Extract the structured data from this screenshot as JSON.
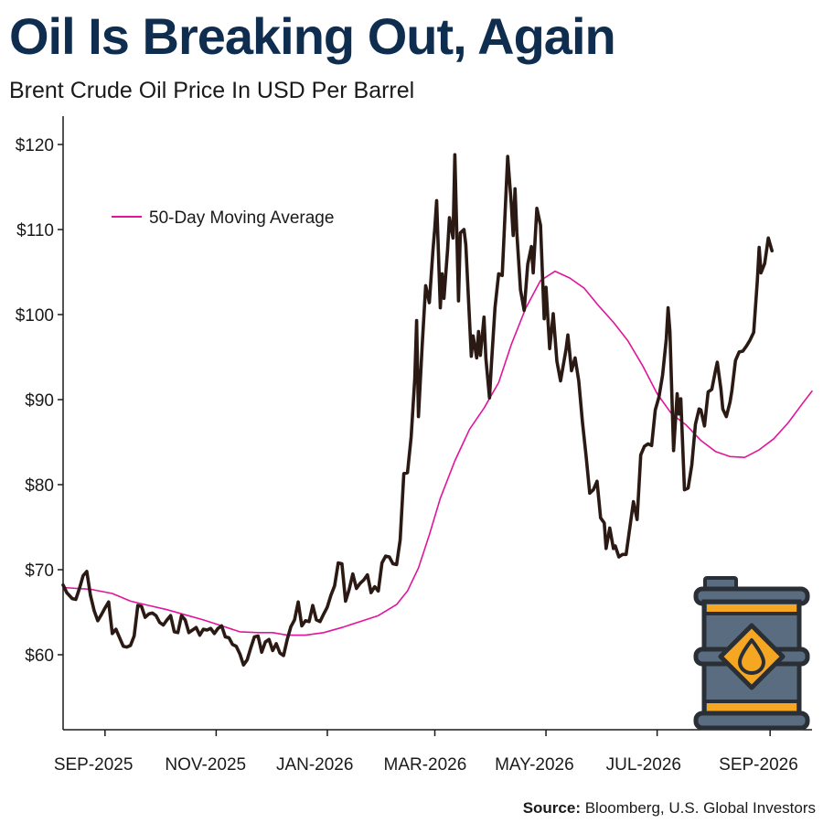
{
  "header": {
    "title": "Oil Is Breaking Out, Again",
    "subtitle": "Brent Crude Oil Price In USD Per Barrel"
  },
  "footer": {
    "source_label": "Source:",
    "source_text": " Bloomberg, U.S. Global Investors"
  },
  "icon": {
    "name": "oil-barrel-icon",
    "colors": {
      "body": "#5a6d80",
      "outline": "#2a2f36",
      "band": "#f5a623",
      "drop": "#f5a623"
    }
  },
  "chart_data": {
    "type": "line",
    "title": "Oil Is Breaking Out, Again",
    "subtitle": "Brent Crude Oil Price In USD Per Barrel",
    "ylim": [
      50,
      123
    ],
    "xlim": [
      "2025-08-09",
      "2026-09-24"
    ],
    "y_ticks": [
      60,
      70,
      80,
      90,
      100,
      110,
      120
    ],
    "y_tick_labels": [
      "$60",
      "$70",
      "$80",
      "$90",
      "$100",
      "$110",
      "$120"
    ],
    "x_ticks": [
      "2025-09-01",
      "2025-11-01",
      "2026-01-01",
      "2026-03-01",
      "2026-05-01",
      "2026-07-01",
      "2026-09-01"
    ],
    "x_tick_labels": [
      "SEP-2025",
      "NOV-2025",
      "JAN-2026",
      "MAR-2026",
      "MAY-2026",
      "JUL-2026",
      "SEP-2026"
    ],
    "legend": {
      "position": "top-left",
      "entries": [
        "50-Day Moving Average"
      ]
    },
    "colors": {
      "price": "#2b1a14",
      "ma": "#e0159a",
      "axis": "#1a1a1a"
    },
    "series": [
      {
        "key": "price",
        "values": [
          [
            "2025-08-09",
            68.2
          ],
          [
            "2025-08-11",
            67.3
          ],
          [
            "2025-08-14",
            66.6
          ],
          [
            "2025-08-16",
            66.5
          ],
          [
            "2025-08-18",
            67.8
          ],
          [
            "2025-08-20",
            69.3
          ],
          [
            "2025-08-22",
            69.8
          ],
          [
            "2025-08-24",
            67.0
          ],
          [
            "2025-08-26",
            65.2
          ],
          [
            "2025-08-28",
            64.0
          ],
          [
            "2025-08-30",
            64.7
          ],
          [
            "2025-09-01",
            65.5
          ],
          [
            "2025-09-03",
            66.2
          ],
          [
            "2025-09-05",
            62.5
          ],
          [
            "2025-09-07",
            63.0
          ],
          [
            "2025-09-09",
            62.0
          ],
          [
            "2025-09-11",
            61.0
          ],
          [
            "2025-09-13",
            60.9
          ],
          [
            "2025-09-15",
            61.1
          ],
          [
            "2025-09-17",
            62.2
          ],
          [
            "2025-09-19",
            65.8
          ],
          [
            "2025-09-21",
            65.7
          ],
          [
            "2025-09-23",
            64.4
          ],
          [
            "2025-09-25",
            64.8
          ],
          [
            "2025-09-27",
            64.9
          ],
          [
            "2025-09-29",
            64.6
          ],
          [
            "2025-10-01",
            63.8
          ],
          [
            "2025-10-03",
            63.5
          ],
          [
            "2025-10-05",
            64.1
          ],
          [
            "2025-10-07",
            64.6
          ],
          [
            "2025-10-09",
            62.7
          ],
          [
            "2025-10-11",
            62.6
          ],
          [
            "2025-10-13",
            64.6
          ],
          [
            "2025-10-15",
            64.1
          ],
          [
            "2025-10-17",
            62.6
          ],
          [
            "2025-10-19",
            62.9
          ],
          [
            "2025-10-21",
            63.2
          ],
          [
            "2025-10-23",
            62.3
          ],
          [
            "2025-10-25",
            63.0
          ],
          [
            "2025-10-27",
            62.9
          ],
          [
            "2025-10-29",
            63.1
          ],
          [
            "2025-10-31",
            62.5
          ],
          [
            "2025-11-02",
            63.1
          ],
          [
            "2025-11-04",
            63.4
          ],
          [
            "2025-11-06",
            62.1
          ],
          [
            "2025-11-08",
            62.0
          ],
          [
            "2025-11-10",
            61.2
          ],
          [
            "2025-11-12",
            61.0
          ],
          [
            "2025-11-14",
            60.1
          ],
          [
            "2025-11-16",
            58.8
          ],
          [
            "2025-11-18",
            59.4
          ],
          [
            "2025-11-20",
            60.8
          ],
          [
            "2025-11-22",
            62.1
          ],
          [
            "2025-11-24",
            62.2
          ],
          [
            "2025-11-26",
            60.3
          ],
          [
            "2025-11-28",
            61.5
          ],
          [
            "2025-11-30",
            61.8
          ],
          [
            "2025-12-02",
            60.5
          ],
          [
            "2025-12-04",
            61.3
          ],
          [
            "2025-12-06",
            60.2
          ],
          [
            "2025-12-08",
            59.9
          ],
          [
            "2025-12-10",
            61.8
          ],
          [
            "2025-12-12",
            63.3
          ],
          [
            "2025-12-14",
            64.1
          ],
          [
            "2025-12-16",
            66.2
          ],
          [
            "2025-12-18",
            63.4
          ],
          [
            "2025-12-20",
            64.0
          ],
          [
            "2025-12-22",
            63.9
          ],
          [
            "2025-12-24",
            65.8
          ],
          [
            "2025-12-26",
            64.1
          ],
          [
            "2025-12-28",
            63.9
          ],
          [
            "2025-12-30",
            64.8
          ],
          [
            "2026-01-01",
            65.6
          ],
          [
            "2026-01-03",
            67.0
          ],
          [
            "2026-01-05",
            68.1
          ],
          [
            "2026-01-07",
            70.8
          ],
          [
            "2026-01-09",
            70.7
          ],
          [
            "2026-01-11",
            66.3
          ],
          [
            "2026-01-13",
            67.7
          ],
          [
            "2026-01-15",
            69.5
          ],
          [
            "2026-01-17",
            67.8
          ],
          [
            "2026-01-19",
            68.4
          ],
          [
            "2026-01-21",
            68.8
          ],
          [
            "2026-01-23",
            69.4
          ],
          [
            "2026-01-25",
            67.3
          ],
          [
            "2026-01-27",
            68.0
          ],
          [
            "2026-01-29",
            67.5
          ],
          [
            "2026-01-31",
            70.8
          ],
          [
            "2026-02-02",
            71.6
          ],
          [
            "2026-02-04",
            71.5
          ],
          [
            "2026-02-06",
            70.7
          ],
          [
            "2026-02-08",
            70.6
          ],
          [
            "2026-02-10",
            73.5
          ],
          [
            "2026-02-12",
            81.3
          ],
          [
            "2026-02-14",
            81.4
          ],
          [
            "2026-02-16",
            85.6
          ],
          [
            "2026-02-18",
            92.5
          ],
          [
            "2026-02-19",
            99.3
          ],
          [
            "2026-02-20",
            88.0
          ],
          [
            "2026-02-22",
            96.2
          ],
          [
            "2026-02-24",
            103.4
          ],
          [
            "2026-02-26",
            101.4
          ],
          [
            "2026-02-28",
            107.6
          ],
          [
            "2026-03-01",
            110.2
          ],
          [
            "2026-03-02",
            113.4
          ],
          [
            "2026-03-04",
            100.8
          ],
          [
            "2026-03-05",
            104.8
          ],
          [
            "2026-03-06",
            101.9
          ],
          [
            "2026-03-08",
            107.7
          ],
          [
            "2026-03-09",
            111.4
          ],
          [
            "2026-03-11",
            109.0
          ],
          [
            "2026-03-12",
            118.8
          ],
          [
            "2026-03-14",
            101.6
          ],
          [
            "2026-03-15",
            109.6
          ],
          [
            "2026-03-17",
            110.0
          ],
          [
            "2026-03-18",
            108.2
          ],
          [
            "2026-03-21",
            95.1
          ],
          [
            "2026-03-22",
            97.5
          ],
          [
            "2026-03-24",
            94.9
          ],
          [
            "2026-03-25",
            98.0
          ],
          [
            "2026-03-26",
            95.2
          ],
          [
            "2026-03-28",
            99.7
          ],
          [
            "2026-03-29",
            94.9
          ],
          [
            "2026-03-31",
            90.2
          ],
          [
            "2026-04-01",
            94.0
          ],
          [
            "2026-04-03",
            100.8
          ],
          [
            "2026-04-05",
            104.8
          ],
          [
            "2026-04-07",
            104.6
          ],
          [
            "2026-04-10",
            118.6
          ],
          [
            "2026-04-12",
            112.9
          ],
          [
            "2026-04-13",
            109.3
          ],
          [
            "2026-04-14",
            114.8
          ],
          [
            "2026-04-15",
            109.6
          ],
          [
            "2026-04-17",
            102.9
          ],
          [
            "2026-04-19",
            100.5
          ],
          [
            "2026-04-21",
            105.9
          ],
          [
            "2026-04-23",
            108.0
          ],
          [
            "2026-04-24",
            104.9
          ],
          [
            "2026-04-26",
            112.5
          ],
          [
            "2026-04-28",
            110.5
          ],
          [
            "2026-04-30",
            99.5
          ],
          [
            "2026-05-01",
            103.2
          ],
          [
            "2026-05-03",
            96.0
          ],
          [
            "2026-05-05",
            100.1
          ],
          [
            "2026-05-07",
            94.5
          ],
          [
            "2026-05-09",
            92.2
          ],
          [
            "2026-05-12",
            95.9
          ],
          [
            "2026-05-13",
            97.6
          ],
          [
            "2026-05-15",
            93.4
          ],
          [
            "2026-05-17",
            94.9
          ],
          [
            "2026-05-19",
            92.2
          ],
          [
            "2026-05-21",
            87.4
          ],
          [
            "2026-05-23",
            83.4
          ],
          [
            "2026-05-25",
            79.0
          ],
          [
            "2026-05-27",
            79.4
          ],
          [
            "2026-05-29",
            80.4
          ],
          [
            "2026-05-31",
            76.1
          ],
          [
            "2026-06-02",
            75.5
          ],
          [
            "2026-06-03",
            72.5
          ],
          [
            "2026-06-05",
            74.9
          ],
          [
            "2026-06-07",
            72.5
          ],
          [
            "2026-06-08",
            72.8
          ],
          [
            "2026-06-10",
            71.5
          ],
          [
            "2026-06-12",
            71.8
          ],
          [
            "2026-06-14",
            71.8
          ],
          [
            "2026-06-16",
            74.9
          ],
          [
            "2026-06-18",
            78.0
          ],
          [
            "2026-06-20",
            75.9
          ],
          [
            "2026-06-22",
            83.5
          ],
          [
            "2026-06-24",
            84.5
          ],
          [
            "2026-06-26",
            84.8
          ],
          [
            "2026-06-28",
            84.6
          ],
          [
            "2026-06-30",
            88.8
          ],
          [
            "2026-07-02",
            90.3
          ],
          [
            "2026-07-04",
            92.9
          ],
          [
            "2026-07-06",
            97.1
          ],
          [
            "2026-07-07",
            100.8
          ],
          [
            "2026-07-08",
            98.0
          ],
          [
            "2026-07-10",
            84.0
          ],
          [
            "2026-07-12",
            90.7
          ],
          [
            "2026-07-13",
            88.3
          ],
          [
            "2026-07-14",
            90.1
          ],
          [
            "2026-07-16",
            79.4
          ],
          [
            "2026-07-18",
            79.6
          ],
          [
            "2026-07-20",
            82.3
          ],
          [
            "2026-07-22",
            87.1
          ],
          [
            "2026-07-24",
            88.9
          ],
          [
            "2026-07-25",
            88.8
          ],
          [
            "2026-07-27",
            86.9
          ],
          [
            "2026-07-29",
            90.9
          ],
          [
            "2026-07-31",
            91.2
          ],
          [
            "2026-08-02",
            93.4
          ],
          [
            "2026-08-03",
            94.4
          ],
          [
            "2026-08-05",
            91.2
          ],
          [
            "2026-08-06",
            88.9
          ],
          [
            "2026-08-08",
            88.0
          ],
          [
            "2026-08-10",
            89.7
          ],
          [
            "2026-08-11",
            91.0
          ],
          [
            "2026-08-13",
            94.6
          ],
          [
            "2026-08-15",
            95.6
          ],
          [
            "2026-08-17",
            95.7
          ],
          [
            "2026-08-19",
            96.3
          ],
          [
            "2026-08-21",
            97.0
          ],
          [
            "2026-08-23",
            97.9
          ],
          [
            "2026-08-25",
            104.0
          ],
          [
            "2026-08-26",
            107.9
          ],
          [
            "2026-08-27",
            104.9
          ],
          [
            "2026-08-29",
            106.0
          ],
          [
            "2026-08-31",
            109.0
          ],
          [
            "2026-09-02",
            107.5
          ]
        ]
      },
      {
        "key": "ma",
        "name": "50-Day Moving Average",
        "values": [
          [
            "2025-08-09",
            67.9
          ],
          [
            "2025-08-24",
            67.7
          ],
          [
            "2025-09-05",
            67.2
          ],
          [
            "2025-09-15",
            66.3
          ],
          [
            "2025-09-25",
            65.8
          ],
          [
            "2025-10-05",
            65.3
          ],
          [
            "2025-10-15",
            64.7
          ],
          [
            "2025-10-25",
            64.1
          ],
          [
            "2025-11-04",
            63.4
          ],
          [
            "2025-11-14",
            62.7
          ],
          [
            "2025-11-24",
            62.6
          ],
          [
            "2025-12-02",
            62.6
          ],
          [
            "2025-12-10",
            62.3
          ],
          [
            "2025-12-20",
            62.3
          ],
          [
            "2025-12-30",
            62.6
          ],
          [
            "2026-01-09",
            63.2
          ],
          [
            "2026-01-19",
            63.9
          ],
          [
            "2026-01-29",
            64.6
          ],
          [
            "2026-02-08",
            65.9
          ],
          [
            "2026-02-14",
            67.5
          ],
          [
            "2026-02-20",
            70.2
          ],
          [
            "2026-02-26",
            74.1
          ],
          [
            "2026-03-04",
            78.4
          ],
          [
            "2026-03-12",
            82.8
          ],
          [
            "2026-03-20",
            86.5
          ],
          [
            "2026-03-28",
            89.0
          ],
          [
            "2026-04-05",
            92.0
          ],
          [
            "2026-04-12",
            96.5
          ],
          [
            "2026-04-20",
            100.8
          ],
          [
            "2026-04-28",
            104.0
          ],
          [
            "2026-05-06",
            105.1
          ],
          [
            "2026-05-14",
            104.3
          ],
          [
            "2026-05-22",
            103.1
          ],
          [
            "2026-05-30",
            101.0
          ],
          [
            "2026-06-07",
            99.1
          ],
          [
            "2026-06-15",
            96.9
          ],
          [
            "2026-06-23",
            94.0
          ],
          [
            "2026-07-01",
            90.7
          ],
          [
            "2026-07-09",
            88.3
          ],
          [
            "2026-07-17",
            87.0
          ],
          [
            "2026-07-25",
            85.2
          ],
          [
            "2026-08-02",
            83.9
          ],
          [
            "2026-08-10",
            83.3
          ],
          [
            "2026-08-18",
            83.2
          ],
          [
            "2026-08-26",
            84.1
          ],
          [
            "2026-09-03",
            85.4
          ],
          [
            "2026-09-11",
            87.3
          ],
          [
            "2026-09-19",
            89.6
          ],
          [
            "2026-09-24",
            91.0
          ]
        ]
      }
    ]
  }
}
